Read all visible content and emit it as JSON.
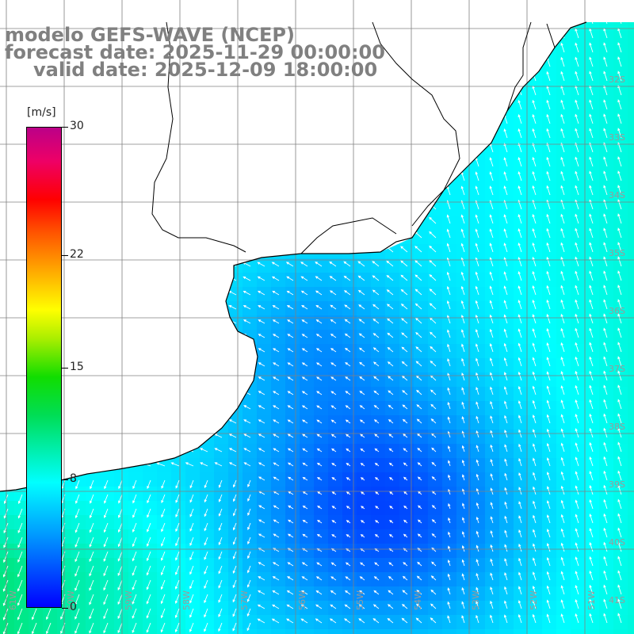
{
  "header": {
    "title": "modelo GEFS-WAVE (NCEP)",
    "forecast": "forecast date: 2025-11-29 00:00:00",
    "valid": "valid date: 2025-12-09 18:00:00"
  },
  "colorbar": {
    "unit": "[m/s]",
    "ticks": [
      "30",
      "22",
      "15",
      "8",
      "0"
    ],
    "tick_values": [
      30,
      22,
      15,
      8,
      0
    ],
    "range": [
      0,
      30
    ],
    "colors": [
      "#0000ff",
      "#0099ff",
      "#00ffff",
      "#00dd55",
      "#11dd00",
      "#aaee00",
      "#ffff00",
      "#ffaa00",
      "#ff5500",
      "#ff0000",
      "#ee0066",
      "#bb0088"
    ]
  },
  "map": {
    "lat_labels": [
      "32S",
      "33S",
      "34S",
      "35S",
      "36S",
      "37S",
      "38S",
      "39S",
      "40S",
      "41S"
    ],
    "lon_labels": [
      "61W",
      "60W",
      "59W",
      "58W",
      "57W",
      "56W",
      "55W",
      "54W",
      "53W",
      "52W",
      "51W"
    ],
    "land_color": "#ffffff",
    "coast_color": "#000000",
    "grid_color": "#808080",
    "arrow_color": "#ffffff",
    "field_type": "wind speed and direction"
  }
}
